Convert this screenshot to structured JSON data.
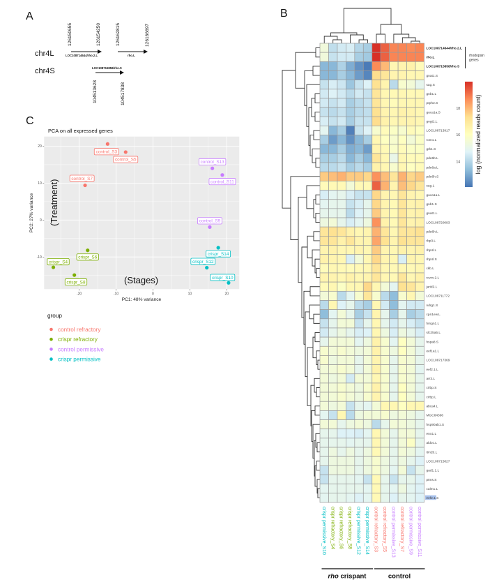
{
  "panels": {
    "a": "A",
    "b": "B",
    "c": "C"
  },
  "panel_a": {
    "chromosomes": [
      {
        "name": "chr4L",
        "genes": [
          {
            "label": "LOC108714644/rho.2.L",
            "start": "126150655",
            "end": "126154250"
          },
          {
            "label": "rho.L",
            "start": "126162815",
            "end": "126166697"
          }
        ]
      },
      {
        "name": "chr4S",
        "genes": [
          {
            "label": "LOC108715858/rho.S",
            "start": "104513628",
            "end": "104517838"
          }
        ]
      }
    ]
  },
  "group_colors": {
    "control refractory": "#F8766D",
    "crispr refractory": "#7CAE00",
    "control permissive": "#C77CFF",
    "crispr permissive": "#00BFC4"
  },
  "chart_data": [
    {
      "type": "scatter",
      "title": "PCA on all expressed genes",
      "xlabel": "PC1: 48% variance",
      "ylabel": "PC2: 27% variance",
      "xlim": [
        -29.5,
        23.4
      ],
      "ylim": [
        -18.7,
        22.6
      ],
      "xticks": [
        -20,
        -10,
        0,
        10,
        20
      ],
      "yticks": [
        -10,
        0,
        10,
        20
      ],
      "grid": true,
      "annotations": {
        "y_group": "(Treatment)",
        "x_group": "(Stages)"
      },
      "legend": {
        "title": "group",
        "position": "bottom-left",
        "entries": [
          "control refractory",
          "crispr refractory",
          "control permissive",
          "crispr permissive"
        ]
      },
      "points": [
        {
          "label": "control_S3",
          "group": "control refractory",
          "x": -12.3,
          "y": 20.6
        },
        {
          "label": "control_S5",
          "group": "control refractory",
          "x": -7.4,
          "y": 18.4
        },
        {
          "label": "control_S7",
          "group": "control refractory",
          "x": -18.4,
          "y": 9.4
        },
        {
          "label": "control_S13",
          "group": "control permissive",
          "x": 16.1,
          "y": 14.0
        },
        {
          "label": "control_S11",
          "group": "control permissive",
          "x": 18.8,
          "y": 12.2
        },
        {
          "label": "control_S9",
          "group": "control permissive",
          "x": 15.4,
          "y": -1.9
        },
        {
          "label": "crispr_S6",
          "group": "crispr refractory",
          "x": -17.7,
          "y": -8.2
        },
        {
          "label": "crispr_S4",
          "group": "crispr refractory",
          "x": -27.0,
          "y": -12.8
        },
        {
          "label": "crispr_S8",
          "group": "crispr refractory",
          "x": -21.3,
          "y": -14.9
        },
        {
          "label": "crispr_S14",
          "group": "crispr permissive",
          "x": 17.7,
          "y": -7.5
        },
        {
          "label": "crispr_S12",
          "group": "crispr permissive",
          "x": 14.6,
          "y": -12.9
        },
        {
          "label": "crispr_S10",
          "group": "crispr permissive",
          "x": 20.5,
          "y": -17.0
        }
      ]
    },
    {
      "type": "heatmap",
      "colorbar": {
        "label": "log (normalized reads count)",
        "ticks": [
          14,
          16,
          18
        ],
        "range": [
          12.1,
          20.0
        ],
        "palette": [
          "#4575B4",
          "#91BFDB",
          "#E0F3F8",
          "#FFFFBF",
          "#FEE090",
          "#FC8D59",
          "#D73027"
        ]
      },
      "columns": [
        {
          "label": "crispr permissive_S10",
          "group": "crispr permissive"
        },
        {
          "label": "crispr refractory_S4",
          "group": "crispr refractory"
        },
        {
          "label": "crispr refractory_S6",
          "group": "crispr refractory"
        },
        {
          "label": "crispr refractory_S8",
          "group": "crispr refractory"
        },
        {
          "label": "crispr permissive_S12",
          "group": "crispr permissive"
        },
        {
          "label": "crispr permissive_S14",
          "group": "crispr permissive"
        },
        {
          "label": "control refractory_S3",
          "group": "control refractory"
        },
        {
          "label": "control refractory_S5",
          "group": "control refractory"
        },
        {
          "label": "control permissive_S13",
          "group": "control permissive"
        },
        {
          "label": "control refractory_S7",
          "group": "control refractory"
        },
        {
          "label": "control permissive_S9",
          "group": "control permissive"
        },
        {
          "label": "control permissive_S11",
          "group": "control permissive"
        }
      ],
      "column_groups": [
        {
          "italic": "rho",
          "label": " crispant"
        },
        {
          "italic": "",
          "label": "control"
        }
      ],
      "row_annotation": {
        "lines": [
          "rhodopsin",
          "genes"
        ],
        "rows": [
          0,
          1,
          2
        ]
      },
      "rows": [
        "LOC108714644/rho.2.L",
        "rho.L",
        "LOC108715858/rho.S",
        "gnat1.S",
        "sag.S",
        "gnb1.L",
        "prph2.S",
        "guca1a.S",
        "gngt1.L",
        "LOC108713917",
        "rom1.L",
        "grk1.S",
        "pde6b.L",
        "pde6a.L",
        "pde6h.S",
        "sag.L",
        "guca1a.L",
        "gnb1.S",
        "gnat1.L",
        "LOC108720093",
        "pde6h.L",
        "rbp3.L",
        "rbp4l.L",
        "rbp4l.S",
        "ckb.L",
        "rcvrn.2.L",
        "jarid2.L",
        "LOC108711772",
        "ndrg1.S",
        "cpn1ew.L",
        "hmgn1.L",
        "slc25a5.L",
        "hspa8.S",
        "eef1a1.L",
        "LOC108717369",
        "eef2.1.L",
        "arr3.L",
        "cirbp.S",
        "cirbp.L",
        "abca4.L",
        "MGC84396",
        "hsp90ab1.S",
        "eno1.L",
        "aldoc.L",
        "itm2b.L",
        "LOC108715827",
        "gad1.1.L",
        "ptms.S",
        "calm1.L",
        "eef2.1.S"
      ],
      "values": [
        [
          15.4,
          14.2,
          14.5,
          14.6,
          14.0,
          13.8,
          20.0,
          19.3,
          18.8,
          18.8,
          18.7,
          18.8
        ],
        [
          15.4,
          14.3,
          14.5,
          14.5,
          13.8,
          13.7,
          20.0,
          19.3,
          18.8,
          18.8,
          18.8,
          18.8
        ],
        [
          13.3,
          13.3,
          13.9,
          13.1,
          12.6,
          12.2,
          18.7,
          18.0,
          16.4,
          16.5,
          16.6,
          16.2
        ],
        [
          13.3,
          13.3,
          13.8,
          13.3,
          12.8,
          12.4,
          17.4,
          17.1,
          16.5,
          16.5,
          16.4,
          16.4
        ],
        [
          14.3,
          14.6,
          14.4,
          13.6,
          14.3,
          14.7,
          17.3,
          16.5,
          14.1,
          15.7,
          15.5,
          15.0
        ],
        [
          14.5,
          14.7,
          14.5,
          14.1,
          14.5,
          14.3,
          17.1,
          16.4,
          16.3,
          16.4,
          16.3,
          16.3
        ],
        [
          14.5,
          14.3,
          14.5,
          13.8,
          14.1,
          14.3,
          17.1,
          16.4,
          16.2,
          16.4,
          16.4,
          16.4
        ],
        [
          14.3,
          14.1,
          14.3,
          13.8,
          14.1,
          14.2,
          17.3,
          16.5,
          16.4,
          16.6,
          16.5,
          16.4
        ],
        [
          14.6,
          14.3,
          14.5,
          13.8,
          14.3,
          14.3,
          17.4,
          16.6,
          16.4,
          16.5,
          16.5,
          16.4
        ],
        [
          14.9,
          13.3,
          13.8,
          12.3,
          14.3,
          14.7,
          15.7,
          16.2,
          15.9,
          15.7,
          16.2,
          16.0
        ],
        [
          13.8,
          12.8,
          13.3,
          12.6,
          13.3,
          13.8,
          16.4,
          16.0,
          15.7,
          16.0,
          15.5,
          15.9
        ],
        [
          13.3,
          13.3,
          13.8,
          13.1,
          13.3,
          12.8,
          16.5,
          16.3,
          15.8,
          16.2,
          15.9,
          15.9
        ],
        [
          13.8,
          13.8,
          14.1,
          13.3,
          13.8,
          13.3,
          17.1,
          16.4,
          15.1,
          16.4,
          16.2,
          16.2
        ],
        [
          14.1,
          14.1,
          14.3,
          13.8,
          14.1,
          13.8,
          16.6,
          16.4,
          15.7,
          16.4,
          16.0,
          16.2
        ],
        [
          17.7,
          17.9,
          18.1,
          17.7,
          17.7,
          17.5,
          18.6,
          17.9,
          17.1,
          18.1,
          17.5,
          17.7
        ],
        [
          16.2,
          16.3,
          16.3,
          15.5,
          16.3,
          16.3,
          19.3,
          18.1,
          16.5,
          17.9,
          17.5,
          17.1
        ],
        [
          14.6,
          14.9,
          15.0,
          14.6,
          14.3,
          14.3,
          17.5,
          16.5,
          16.4,
          17.1,
          16.5,
          16.4
        ],
        [
          14.9,
          15.0,
          15.0,
          14.3,
          14.6,
          15.0,
          17.5,
          16.5,
          16.3,
          17.1,
          16.5,
          16.6
        ],
        [
          15.0,
          15.0,
          15.0,
          14.1,
          14.7,
          15.0,
          17.7,
          16.5,
          16.3,
          17.1,
          16.5,
          16.6
        ],
        [
          15.3,
          15.5,
          15.0,
          14.6,
          14.9,
          15.3,
          18.6,
          16.6,
          16.3,
          17.1,
          16.5,
          16.6
        ],
        [
          17.1,
          17.3,
          17.1,
          16.6,
          16.4,
          16.5,
          18.1,
          17.1,
          16.4,
          17.1,
          17.1,
          17.3
        ],
        [
          17.1,
          17.1,
          16.6,
          17.1,
          16.5,
          16.5,
          18.3,
          17.3,
          16.5,
          17.3,
          17.1,
          17.1
        ],
        [
          16.5,
          16.6,
          16.4,
          16.4,
          16.5,
          16.4,
          17.7,
          16.5,
          16.4,
          16.6,
          16.5,
          16.6
        ],
        [
          16.6,
          16.5,
          16.4,
          14.6,
          15.5,
          16.4,
          17.5,
          16.5,
          16.4,
          14.6,
          16.5,
          16.4
        ],
        [
          16.2,
          16.4,
          16.3,
          16.2,
          16.3,
          16.4,
          17.1,
          16.4,
          16.3,
          16.4,
          16.3,
          16.4
        ],
        [
          16.5,
          16.5,
          16.4,
          16.6,
          16.4,
          16.5,
          17.1,
          16.4,
          16.3,
          17.1,
          16.4,
          16.6
        ],
        [
          16.2,
          16.4,
          15.9,
          16.4,
          16.4,
          17.5,
          16.4,
          15.5,
          14.9,
          17.3,
          17.1,
          16.5
        ],
        [
          15.5,
          15.7,
          14.1,
          14.9,
          15.7,
          17.1,
          15.7,
          14.1,
          13.4,
          15.7,
          16.4,
          15.5
        ],
        [
          14.1,
          16.4,
          14.7,
          15.0,
          14.1,
          13.8,
          16.4,
          14.5,
          13.4,
          14.9,
          14.5,
          14.5
        ],
        [
          13.4,
          14.9,
          15.5,
          15.0,
          13.8,
          14.3,
          16.5,
          15.0,
          13.8,
          15.0,
          13.8,
          14.1
        ],
        [
          14.3,
          15.0,
          15.5,
          15.5,
          14.3,
          15.0,
          16.4,
          15.0,
          14.5,
          15.0,
          14.6,
          14.3
        ],
        [
          14.5,
          15.0,
          15.3,
          15.0,
          14.6,
          14.7,
          16.4,
          15.3,
          14.6,
          15.3,
          15.0,
          14.6
        ],
        [
          15.0,
          15.5,
          15.5,
          15.5,
          14.9,
          15.3,
          16.6,
          15.7,
          14.9,
          16.0,
          15.5,
          15.0
        ],
        [
          15.7,
          15.5,
          15.7,
          15.5,
          15.3,
          15.5,
          16.6,
          15.7,
          15.3,
          16.0,
          15.5,
          15.0
        ],
        [
          15.7,
          15.3,
          15.5,
          15.5,
          15.0,
          15.5,
          16.5,
          15.7,
          15.0,
          15.7,
          15.5,
          15.0
        ],
        [
          15.5,
          15.5,
          15.7,
          15.5,
          15.0,
          15.5,
          16.6,
          15.7,
          15.0,
          15.7,
          15.5,
          14.9
        ],
        [
          15.5,
          15.3,
          15.5,
          14.5,
          15.5,
          15.5,
          16.4,
          15.7,
          15.0,
          15.7,
          15.5,
          15.0
        ],
        [
          15.5,
          15.5,
          15.7,
          15.5,
          15.3,
          15.7,
          16.6,
          15.7,
          15.0,
          16.0,
          15.5,
          15.0
        ],
        [
          15.5,
          15.5,
          15.7,
          15.5,
          15.3,
          15.7,
          16.5,
          15.7,
          15.0,
          16.0,
          15.5,
          15.0
        ],
        [
          15.5,
          15.3,
          15.5,
          14.3,
          15.0,
          14.9,
          15.5,
          16.4,
          16.4,
          16.0,
          16.4,
          16.4
        ],
        [
          14.9,
          14.3,
          16.4,
          14.1,
          15.3,
          15.5,
          15.5,
          15.7,
          15.3,
          15.5,
          15.3,
          15.0
        ],
        [
          15.5,
          15.5,
          15.0,
          15.3,
          15.5,
          15.3,
          14.1,
          15.0,
          15.5,
          15.5,
          15.3,
          15.0
        ],
        [
          15.0,
          15.0,
          14.7,
          14.7,
          14.6,
          14.9,
          16.4,
          15.5,
          15.0,
          15.5,
          15.5,
          15.0
        ],
        [
          15.0,
          15.0,
          15.0,
          14.9,
          15.0,
          15.0,
          16.4,
          15.5,
          15.0,
          15.5,
          15.9,
          15.0
        ],
        [
          15.0,
          15.3,
          15.0,
          15.3,
          15.0,
          15.3,
          16.3,
          15.5,
          15.0,
          15.5,
          15.3,
          14.9
        ],
        [
          15.0,
          15.3,
          15.3,
          15.3,
          15.0,
          15.3,
          15.7,
          15.3,
          15.0,
          15.3,
          15.0,
          14.7
        ],
        [
          14.3,
          15.3,
          15.3,
          15.3,
          15.0,
          15.3,
          15.7,
          15.3,
          14.9,
          15.5,
          14.3,
          15.0
        ],
        [
          14.3,
          15.0,
          15.0,
          15.0,
          14.9,
          14.3,
          16.3,
          15.0,
          14.3,
          15.0,
          15.0,
          14.7
        ],
        [
          14.9,
          15.0,
          15.0,
          15.0,
          15.0,
          14.9,
          16.3,
          15.0,
          14.9,
          15.3,
          14.9,
          14.7
        ],
        [
          14.9,
          15.0,
          15.0,
          14.9,
          14.7,
          14.9,
          16.3,
          15.0,
          14.7,
          15.0,
          14.9,
          14.7
        ]
      ]
    }
  ]
}
